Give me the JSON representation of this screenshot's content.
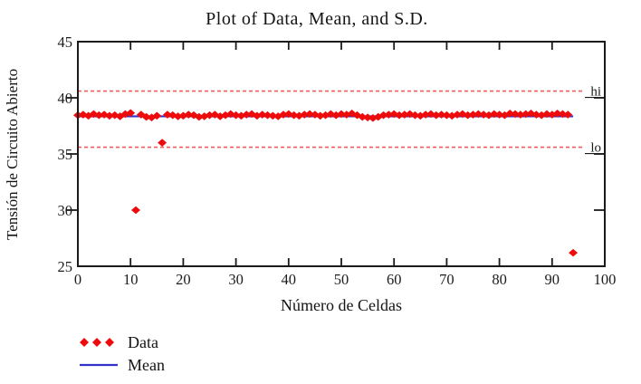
{
  "chart_data": {
    "type": "scatter",
    "title": "Plot of Data, Mean, and S.D.",
    "xlabel": "Número de Celdas",
    "ylabel": "Tensión de Circuito Abierto",
    "xlim": [
      0,
      100
    ],
    "ylim": [
      25,
      45
    ],
    "x_ticks": [
      0,
      10,
      20,
      30,
      40,
      50,
      60,
      70,
      80,
      90,
      100
    ],
    "y_ticks": [
      25,
      30,
      35,
      40,
      45
    ],
    "grid": false,
    "legend_position": "bottom-left",
    "series": [
      {
        "name": "Data",
        "type": "scatter",
        "marker": "diamond",
        "color": "#ee0b0b",
        "x": [
          0,
          1,
          2,
          3,
          4,
          5,
          6,
          7,
          8,
          9,
          10,
          11,
          12,
          13,
          14,
          15,
          16,
          17,
          18,
          19,
          20,
          21,
          22,
          23,
          24,
          25,
          26,
          27,
          28,
          29,
          30,
          31,
          32,
          33,
          34,
          35,
          36,
          37,
          38,
          39,
          40,
          41,
          42,
          43,
          44,
          45,
          46,
          47,
          48,
          49,
          50,
          51,
          52,
          53,
          54,
          55,
          56,
          57,
          58,
          59,
          60,
          61,
          62,
          63,
          64,
          65,
          66,
          67,
          68,
          69,
          70,
          71,
          72,
          73,
          74,
          75,
          76,
          77,
          78,
          79,
          80,
          81,
          82,
          83,
          84,
          85,
          86,
          87,
          88,
          89,
          90,
          91,
          92,
          93,
          94
        ],
        "y": [
          38.45,
          38.5,
          38.4,
          38.55,
          38.45,
          38.5,
          38.4,
          38.45,
          38.35,
          38.55,
          38.65,
          30.0,
          38.5,
          38.3,
          38.25,
          38.4,
          36.0,
          38.5,
          38.45,
          38.35,
          38.4,
          38.5,
          38.45,
          38.3,
          38.35,
          38.45,
          38.5,
          38.35,
          38.45,
          38.55,
          38.45,
          38.4,
          38.5,
          38.55,
          38.4,
          38.5,
          38.45,
          38.4,
          38.35,
          38.5,
          38.55,
          38.45,
          38.4,
          38.5,
          38.55,
          38.5,
          38.4,
          38.45,
          38.55,
          38.45,
          38.55,
          38.5,
          38.6,
          38.45,
          38.3,
          38.25,
          38.2,
          38.3,
          38.45,
          38.5,
          38.55,
          38.45,
          38.5,
          38.55,
          38.45,
          38.4,
          38.5,
          38.55,
          38.45,
          38.5,
          38.45,
          38.4,
          38.5,
          38.55,
          38.45,
          38.5,
          38.55,
          38.5,
          38.45,
          38.55,
          38.5,
          38.45,
          38.6,
          38.55,
          38.5,
          38.55,
          38.6,
          38.5,
          38.45,
          38.55,
          38.5,
          38.6,
          38.55,
          38.5,
          26.2
        ]
      },
      {
        "name": "Mean",
        "type": "line",
        "color": "#3333cc",
        "value": 38.35,
        "x_range": [
          0,
          94
        ]
      }
    ],
    "markers": [
      {
        "label": "hi",
        "value": 40.6,
        "style": "dashed",
        "color": "#f25c5c"
      },
      {
        "label": "lo",
        "value": 35.6,
        "style": "dashed",
        "color": "#f25c5c"
      }
    ],
    "legend": [
      {
        "label": "Data",
        "marker": "diamond",
        "color": "#ee0b0b"
      },
      {
        "label": "Mean",
        "marker": "line",
        "color": "#3333cc"
      }
    ]
  },
  "colors": {
    "data_red": "#ee0b0b",
    "mean_blue": "#3333cc",
    "marker_dashed_red": "#f25c5c",
    "axis_black": "#1a1a1a",
    "background": "#ffffff"
  }
}
